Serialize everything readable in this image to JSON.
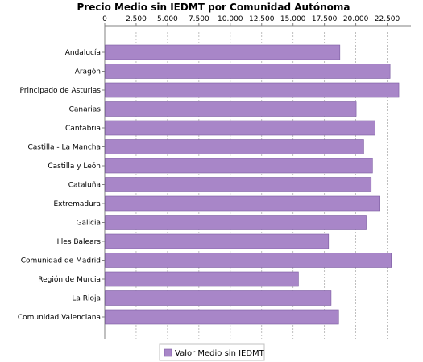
{
  "chart_data": {
    "type": "bar",
    "orientation": "horizontal",
    "title": "Precio Medio sin IEDMT por Comunidad Autónoma",
    "categories": [
      "Andalucía",
      "Aragón",
      "Principado de Asturias",
      "Canarias",
      "Cantabria",
      "Castilla - La Mancha",
      "Castilla y León",
      "Cataluña",
      "Extremadura",
      "Galicia",
      "Illes Balears",
      "Comunidad de Madrid",
      "Región de Murcia",
      "La Rioja",
      "Comunidad Valenciana"
    ],
    "series": [
      {
        "name": "Valor Medio sin IEDMT",
        "values": [
          18700,
          22700,
          23400,
          20000,
          21500,
          20600,
          21300,
          21200,
          21900,
          20800,
          17800,
          22800,
          15400,
          18000,
          18600
        ]
      }
    ],
    "xlim": [
      0,
      23750
    ],
    "xticks": [
      0,
      2500,
      5000,
      7500,
      10000,
      12500,
      15000,
      17500,
      20000,
      22500
    ],
    "xtick_labels": [
      "0",
      "2.500",
      "5.000",
      "7.500",
      "10.000",
      "12.500",
      "15.000",
      "17.500",
      "20.000",
      "22.500"
    ],
    "xaxis_position": "top",
    "grid": "vertical-dashed",
    "legend_placement": "bottom-center",
    "colors": {
      "bar_fill": "#a886c8",
      "bar_stroke": "#7a5aa0",
      "grid": "#b0b0b0",
      "axis": "#808080"
    }
  }
}
